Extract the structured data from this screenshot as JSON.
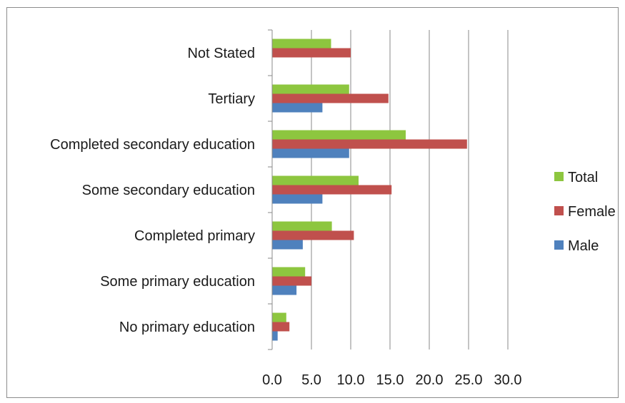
{
  "chart_data": {
    "type": "bar",
    "orientation": "horizontal",
    "categories": [
      "Not Stated",
      "Tertiary",
      "Completed secondary education",
      "Some secondary education",
      "Completed primary",
      "Some primary education",
      "No primary education"
    ],
    "series": [
      {
        "name": "Total",
        "color": "#8dc63f",
        "values": [
          7.5,
          9.8,
          17.0,
          11.0,
          7.6,
          4.2,
          1.8
        ]
      },
      {
        "name": "Female",
        "color": "#c0504d",
        "values": [
          10.0,
          14.8,
          24.8,
          15.2,
          10.4,
          5.0,
          2.2
        ]
      },
      {
        "name": "Male",
        "color": "#4f81bd",
        "values": [
          null,
          6.4,
          9.8,
          6.4,
          3.9,
          3.1,
          0.7
        ]
      }
    ],
    "xlim": [
      0,
      30
    ],
    "xticks": [
      "0.0",
      "5.0",
      "10.0",
      "15.0",
      "20.0",
      "25.0",
      "30.0"
    ],
    "gridlines": "vertical",
    "legend_position": "right",
    "title": "",
    "xlabel": "",
    "ylabel": ""
  }
}
